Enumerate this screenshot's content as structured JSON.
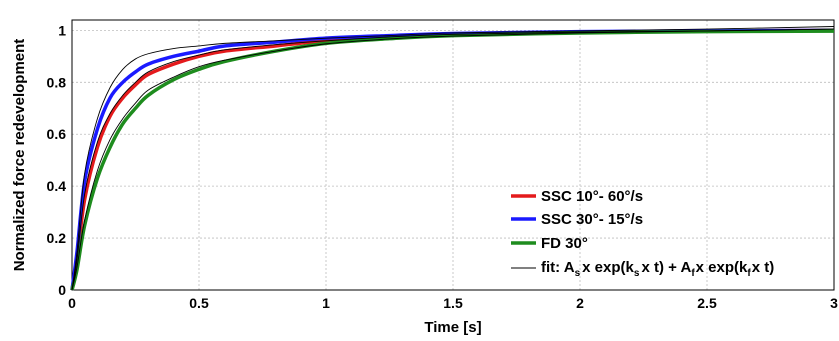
{
  "chart_data": {
    "type": "line",
    "title": "",
    "xlabel": "Time [s]",
    "ylabel": "Normalized force redevelopment",
    "xlim": [
      0,
      3
    ],
    "ylim": [
      0,
      1.04
    ],
    "x_ticks": [
      "0",
      "0.5",
      "1",
      "1.5",
      "2",
      "2.5",
      "3"
    ],
    "y_ticks": [
      "0",
      "0.2",
      "0.4",
      "0.6",
      "0.8",
      "1"
    ],
    "grid": true,
    "legend_position": "bottom-right",
    "x": [
      0,
      0.02,
      0.05,
      0.1,
      0.15,
      0.2,
      0.25,
      0.3,
      0.4,
      0.5,
      0.6,
      0.8,
      1.0,
      1.25,
      1.5,
      2.0,
      2.5,
      3.0
    ],
    "series": [
      {
        "name": "SSC 10°- 60°/s",
        "color": "#e41a1c",
        "values": [
          0,
          0.12,
          0.35,
          0.55,
          0.67,
          0.74,
          0.79,
          0.83,
          0.87,
          0.9,
          0.92,
          0.94,
          0.96,
          0.975,
          0.985,
          0.993,
          0.997,
          1.0
        ]
      },
      {
        "name": "SSC 30°- 15°/s",
        "color": "#1a1aff",
        "values": [
          0,
          0.15,
          0.42,
          0.62,
          0.74,
          0.8,
          0.84,
          0.87,
          0.9,
          0.92,
          0.94,
          0.955,
          0.97,
          0.98,
          0.988,
          0.995,
          0.998,
          1.0
        ]
      },
      {
        "name": "FD 30°",
        "color": "#1e8c1e",
        "values": [
          0,
          0.08,
          0.25,
          0.43,
          0.55,
          0.64,
          0.7,
          0.75,
          0.81,
          0.85,
          0.88,
          0.92,
          0.95,
          0.968,
          0.98,
          0.99,
          0.995,
          0.997
        ]
      }
    ],
    "fits": [
      {
        "values": [
          0,
          0.12,
          0.37,
          0.57,
          0.68,
          0.75,
          0.8,
          0.84,
          0.88,
          0.905,
          0.925,
          0.945,
          0.96,
          0.975,
          0.985,
          0.993,
          0.998,
          1.005
        ]
      },
      {
        "values": [
          0,
          0.15,
          0.45,
          0.66,
          0.78,
          0.85,
          0.89,
          0.91,
          0.93,
          0.94,
          0.95,
          0.96,
          0.97,
          0.98,
          0.99,
          0.998,
          1.005,
          1.015
        ]
      },
      {
        "values": [
          0,
          0.09,
          0.27,
          0.46,
          0.58,
          0.66,
          0.72,
          0.77,
          0.82,
          0.86,
          0.885,
          0.92,
          0.948,
          0.967,
          0.978,
          0.99,
          0.998,
          1.005
        ]
      }
    ],
    "fit_legend": {
      "name": "fit",
      "color": "#000000"
    }
  },
  "legend": {
    "items": [
      {
        "label": "SSC 10°- 60°/s",
        "color": "#e41a1c"
      },
      {
        "label": "SSC 30°- 15°/s",
        "color": "#1a1aff"
      },
      {
        "label": "FD 30°",
        "color": "#1e8c1e"
      }
    ],
    "fit_label": {
      "prefix": "fit: A",
      "sub_s": "s",
      "mid1": "x exp(k",
      "sub_s2": "s",
      "mid2": "x t) + A",
      "sub_f": "f",
      "mid3": "x exp(k",
      "sub_f2": "f",
      "suffix": "x t)"
    }
  }
}
